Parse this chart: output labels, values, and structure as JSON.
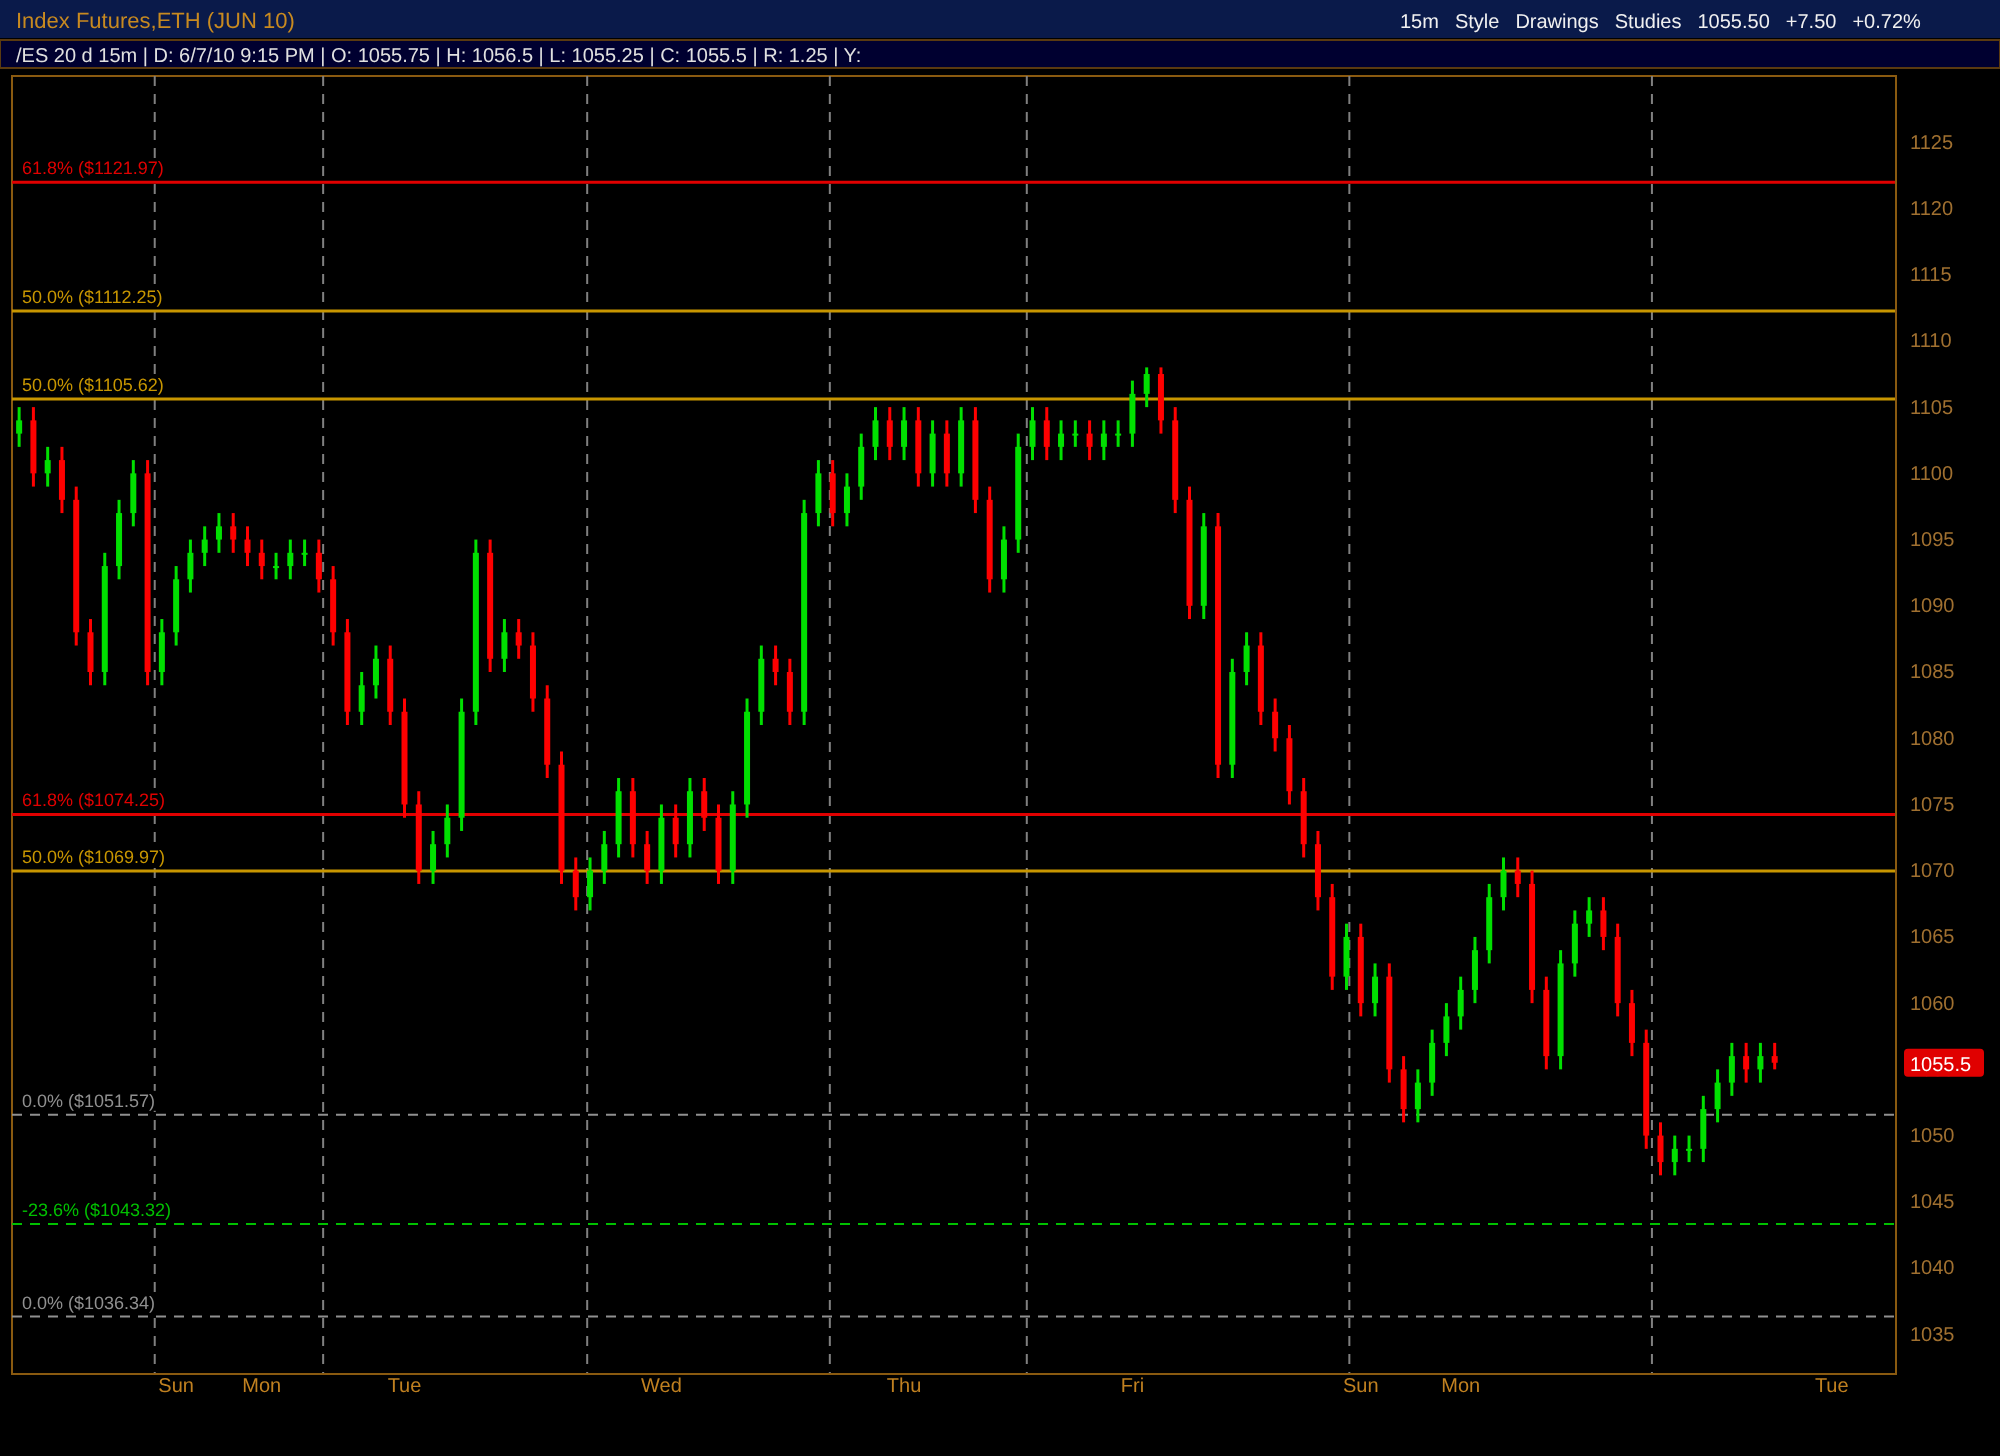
{
  "chart_data": {
    "type": "candlestick",
    "title": "Index Futures,ETH (JUN 10)",
    "subtitle": "/ES 20 d 15m | D: 6/7/10 9:15 PM | O: 1055.75 | H: 1056.5 | L: 1055.25 | C: 1055.5 | R: 1.25 | Y:",
    "categories": [
      null,
      null,
      null,
      null,
      null,
      null,
      null,
      null,
      null,
      null,
      null,
      "Sun",
      null,
      null,
      null,
      null,
      null,
      "Mon",
      null,
      null,
      null,
      null,
      null,
      null,
      null,
      null,
      null,
      "Tue",
      null,
      null,
      null,
      null,
      null,
      null,
      null,
      null,
      null,
      null,
      null,
      null,
      null,
      null,
      null,
      null,
      null,
      "Wed",
      null,
      null,
      null,
      null,
      null,
      null,
      null,
      null,
      null,
      null,
      null,
      null,
      null,
      null,
      null,
      null,
      "Thu",
      null,
      null,
      null,
      null,
      null,
      null,
      null,
      null,
      null,
      null,
      null,
      null,
      null,
      null,
      null,
      "Fri",
      null,
      null,
      null,
      null,
      null,
      null,
      null,
      null,
      null,
      null,
      null,
      null,
      null,
      null,
      null,
      "Sun",
      null,
      null,
      null,
      null,
      null,
      null,
      "Mon",
      null,
      null,
      null,
      null,
      null,
      null,
      null,
      null,
      null,
      null,
      null,
      null,
      null,
      null,
      null,
      null,
      null,
      null,
      null,
      null,
      null,
      null,
      null,
      null,
      null,
      "Tue",
      null,
      null,
      null,
      null
    ],
    "ohlc": [
      [
        1103,
        1105,
        1102,
        1104
      ],
      [
        1104,
        1105,
        1099,
        1100
      ],
      [
        1100,
        1102,
        1099,
        1101
      ],
      [
        1101,
        1102,
        1097,
        1098
      ],
      [
        1098,
        1099,
        1087,
        1088
      ],
      [
        1088,
        1089,
        1084,
        1085
      ],
      [
        1085,
        1094,
        1084,
        1093
      ],
      [
        1093,
        1098,
        1092,
        1097
      ],
      [
        1097,
        1101,
        1096,
        1100
      ],
      [
        1100,
        1101,
        1084,
        1085
      ],
      [
        1085,
        1089,
        1084,
        1088
      ],
      [
        1088,
        1093,
        1087,
        1092
      ],
      [
        1092,
        1095,
        1091,
        1094
      ],
      [
        1094,
        1096,
        1093,
        1095
      ],
      [
        1095,
        1097,
        1094,
        1096
      ],
      [
        1096,
        1097,
        1094,
        1095
      ],
      [
        1095,
        1096,
        1093,
        1094
      ],
      [
        1094,
        1095,
        1092,
        1093
      ],
      [
        1093,
        1094,
        1092,
        1093
      ],
      [
        1093,
        1095,
        1092,
        1094
      ],
      [
        1094,
        1095,
        1093,
        1094
      ],
      [
        1094,
        1095,
        1091,
        1092
      ],
      [
        1092,
        1093,
        1087,
        1088
      ],
      [
        1088,
        1089,
        1081,
        1082
      ],
      [
        1082,
        1085,
        1081,
        1084
      ],
      [
        1084,
        1087,
        1083,
        1086
      ],
      [
        1086,
        1087,
        1081,
        1082
      ],
      [
        1082,
        1083,
        1074,
        1075
      ],
      [
        1075,
        1076,
        1069,
        1070
      ],
      [
        1070,
        1073,
        1069,
        1072
      ],
      [
        1072,
        1075,
        1071,
        1074
      ],
      [
        1074,
        1083,
        1073,
        1082
      ],
      [
        1082,
        1095,
        1081,
        1094
      ],
      [
        1094,
        1095,
        1085,
        1086
      ],
      [
        1086,
        1089,
        1085,
        1088
      ],
      [
        1088,
        1089,
        1086,
        1087
      ],
      [
        1087,
        1088,
        1082,
        1083
      ],
      [
        1083,
        1084,
        1077,
        1078
      ],
      [
        1078,
        1079,
        1069,
        1070
      ],
      [
        1070,
        1071,
        1067,
        1068
      ],
      [
        1068,
        1071,
        1067,
        1070
      ],
      [
        1070,
        1073,
        1069,
        1072
      ],
      [
        1072,
        1077,
        1071,
        1076
      ],
      [
        1076,
        1077,
        1071,
        1072
      ],
      [
        1072,
        1073,
        1069,
        1070
      ],
      [
        1070,
        1075,
        1069,
        1074
      ],
      [
        1074,
        1075,
        1071,
        1072
      ],
      [
        1072,
        1077,
        1071,
        1076
      ],
      [
        1076,
        1077,
        1073,
        1074
      ],
      [
        1074,
        1075,
        1069,
        1070
      ],
      [
        1070,
        1076,
        1069,
        1075
      ],
      [
        1075,
        1083,
        1074,
        1082
      ],
      [
        1082,
        1087,
        1081,
        1086
      ],
      [
        1086,
        1087,
        1084,
        1085
      ],
      [
        1085,
        1086,
        1081,
        1082
      ],
      [
        1082,
        1098,
        1081,
        1097
      ],
      [
        1097,
        1101,
        1096,
        1100
      ],
      [
        1100,
        1101,
        1096,
        1097
      ],
      [
        1097,
        1100,
        1096,
        1099
      ],
      [
        1099,
        1103,
        1098,
        1102
      ],
      [
        1102,
        1105,
        1101,
        1104
      ],
      [
        1104,
        1105,
        1101,
        1102
      ],
      [
        1102,
        1105,
        1101,
        1104
      ],
      [
        1104,
        1105,
        1099,
        1100
      ],
      [
        1100,
        1104,
        1099,
        1103
      ],
      [
        1103,
        1104,
        1099,
        1100
      ],
      [
        1100,
        1105,
        1099,
        1104
      ],
      [
        1104,
        1105,
        1097,
        1098
      ],
      [
        1098,
        1099,
        1091,
        1092
      ],
      [
        1092,
        1096,
        1091,
        1095
      ],
      [
        1095,
        1103,
        1094,
        1102
      ],
      [
        1102,
        1105,
        1101,
        1104
      ],
      [
        1104,
        1105,
        1101,
        1102
      ],
      [
        1102,
        1104,
        1101,
        1103
      ],
      [
        1103,
        1104,
        1102,
        1103
      ],
      [
        1103,
        1104,
        1101,
        1102
      ],
      [
        1102,
        1104,
        1101,
        1103
      ],
      [
        1103,
        1104,
        1102,
        1103
      ],
      [
        1103,
        1107,
        1102,
        1106
      ],
      [
        1106,
        1108,
        1105,
        1107.5
      ],
      [
        1107.5,
        1108,
        1103,
        1104
      ],
      [
        1104,
        1105,
        1097,
        1098
      ],
      [
        1098,
        1099,
        1089,
        1090
      ],
      [
        1090,
        1097,
        1089,
        1096
      ],
      [
        1096,
        1097,
        1077,
        1078
      ],
      [
        1078,
        1086,
        1077,
        1085
      ],
      [
        1085,
        1088,
        1084,
        1087
      ],
      [
        1087,
        1088,
        1081,
        1082
      ],
      [
        1082,
        1083,
        1079,
        1080
      ],
      [
        1080,
        1081,
        1075,
        1076
      ],
      [
        1076,
        1077,
        1071,
        1072
      ],
      [
        1072,
        1073,
        1067,
        1068
      ],
      [
        1068,
        1069,
        1061,
        1062
      ],
      [
        1062,
        1066,
        1061,
        1065
      ],
      [
        1065,
        1066,
        1059,
        1060
      ],
      [
        1060,
        1063,
        1059,
        1062
      ],
      [
        1062,
        1063,
        1054,
        1055
      ],
      [
        1055,
        1056,
        1051,
        1052
      ],
      [
        1052,
        1055,
        1051,
        1054
      ],
      [
        1054,
        1058,
        1053,
        1057
      ],
      [
        1057,
        1060,
        1056,
        1059
      ],
      [
        1059,
        1062,
        1058,
        1061
      ],
      [
        1061,
        1065,
        1060,
        1064
      ],
      [
        1064,
        1069,
        1063,
        1068
      ],
      [
        1068,
        1071,
        1067,
        1070
      ],
      [
        1070,
        1071,
        1068,
        1069
      ],
      [
        1069,
        1070,
        1060,
        1061
      ],
      [
        1061,
        1062,
        1055,
        1056
      ],
      [
        1056,
        1064,
        1055,
        1063
      ],
      [
        1063,
        1067,
        1062,
        1066
      ],
      [
        1066,
        1068,
        1065,
        1067
      ],
      [
        1067,
        1068,
        1064,
        1065
      ],
      [
        1065,
        1066,
        1059,
        1060
      ],
      [
        1060,
        1061,
        1056,
        1057
      ],
      [
        1057,
        1058,
        1049,
        1050
      ],
      [
        1050,
        1051,
        1047,
        1048
      ],
      [
        1048,
        1050,
        1047,
        1049
      ],
      [
        1049,
        1050,
        1048,
        1049
      ],
      [
        1049,
        1053,
        1048,
        1052
      ],
      [
        1052,
        1055,
        1051,
        1054
      ],
      [
        1054,
        1057,
        1053,
        1056
      ],
      [
        1056,
        1057,
        1054,
        1055
      ],
      [
        1055,
        1057,
        1054,
        1056
      ],
      [
        1056,
        1057,
        1055,
        1055.5
      ],
      null,
      null,
      null,
      null,
      null,
      null,
      null,
      null
    ],
    "colors": [
      "#00e000",
      "#ff0000",
      "#00e000",
      "#ff0000",
      "#ff0000",
      "#ff0000",
      "#00e000",
      "#00e000",
      "#00e000",
      "#ff0000",
      "#00e000",
      "#00e000",
      "#00e000",
      "#00e000",
      "#00e000",
      "#ff0000",
      "#ff0000",
      "#ff0000",
      "#00e000",
      "#00e000",
      "#00e000",
      "#ff0000",
      "#ff0000",
      "#ff0000",
      "#00e000",
      "#00e000",
      "#ff0000",
      "#ff0000",
      "#ff0000",
      "#00e000",
      "#00e000",
      "#00e000",
      "#00e000",
      "#ff0000",
      "#00e000",
      "#ff0000",
      "#ff0000",
      "#ff0000",
      "#ff0000",
      "#ff0000",
      "#00e000",
      "#00e000",
      "#00e000",
      "#ff0000",
      "#ff0000",
      "#00e000",
      "#ff0000",
      "#00e000",
      "#ff0000",
      "#ff0000",
      "#00e000",
      "#00e000",
      "#00e000",
      "#ff0000",
      "#ff0000",
      "#00e000",
      "#00e000",
      "#ff0000",
      "#00e000",
      "#00e000",
      "#00e000",
      "#ff0000",
      "#00e000",
      "#ff0000",
      "#00e000",
      "#ff0000",
      "#00e000",
      "#ff0000",
      "#ff0000",
      "#00e000",
      "#00e000",
      "#00e000",
      "#ff0000",
      "#00e000",
      "#00e000",
      "#ff0000",
      "#00e000",
      "#00e000",
      "#00e000",
      "#00e000",
      "#ff0000",
      "#ff0000",
      "#ff0000",
      "#00e000",
      "#ff0000",
      "#00e000",
      "#00e000",
      "#ff0000",
      "#ff0000",
      "#ff0000",
      "#ff0000",
      "#ff0000",
      "#ff0000",
      "#00e000",
      "#ff0000",
      "#00e000",
      "#ff0000",
      "#ff0000",
      "#00e000",
      "#00e000",
      "#00e000",
      "#00e000",
      "#00e000",
      "#00e000",
      "#00e000",
      "#ff0000",
      "#ff0000",
      "#ff0000",
      "#00e000",
      "#00e000",
      "#00e000",
      "#ff0000",
      "#ff0000",
      "#ff0000",
      "#ff0000",
      "#ff0000",
      "#00e000",
      "#00e000",
      "#00e000",
      "#00e000",
      "#00e000",
      "#ff0000",
      "#00e000",
      "#ff0000",
      null,
      null,
      null,
      null,
      null,
      null,
      null,
      null
    ],
    "ylim": [
      1032,
      1130
    ],
    "yticks": [
      1035,
      1040,
      1045,
      1050,
      1055,
      1060,
      1065,
      1070,
      1075,
      1080,
      1085,
      1090,
      1095,
      1100,
      1105,
      1110,
      1115,
      1120,
      1125
    ],
    "ref_lines": [
      {
        "axis": "y",
        "value": 1121.97,
        "label": "61.8%  ($1121.97)",
        "color": "#e00000",
        "line_style": "solid"
      },
      {
        "axis": "y",
        "value": 1112.25,
        "label": "50.0%  ($1112.25)",
        "color": "#c89600",
        "line_style": "solid"
      },
      {
        "axis": "y",
        "value": 1105.62,
        "label": "50.0%  ($1105.62)",
        "color": "#c89600",
        "line_style": "solid"
      },
      {
        "axis": "y",
        "value": 1074.25,
        "label": "61.8%  ($1074.25)",
        "color": "#e00000",
        "line_style": "solid"
      },
      {
        "axis": "y",
        "value": 1069.97,
        "label": "50.0%  ($1069.97)",
        "color": "#c89600",
        "line_style": "solid"
      },
      {
        "axis": "y",
        "value": 1051.57,
        "label": "0.0%  ($1051.57)",
        "color": "#909090",
        "line_style": "dashed"
      },
      {
        "axis": "y",
        "value": 1043.32,
        "label": "-23.6%  ($1043.32)",
        "color": "#00c000",
        "line_style": "dashed"
      },
      {
        "axis": "y",
        "value": 1036.34,
        "label": "0.0%  ($1036.34)",
        "color": "#909090",
        "line_style": "dashed"
      }
    ],
    "annotations": [
      "15m",
      "Style",
      "Drawings",
      "Studies",
      "1055.50",
      "+7.50",
      "+0.72%",
      "1055.5"
    ]
  }
}
